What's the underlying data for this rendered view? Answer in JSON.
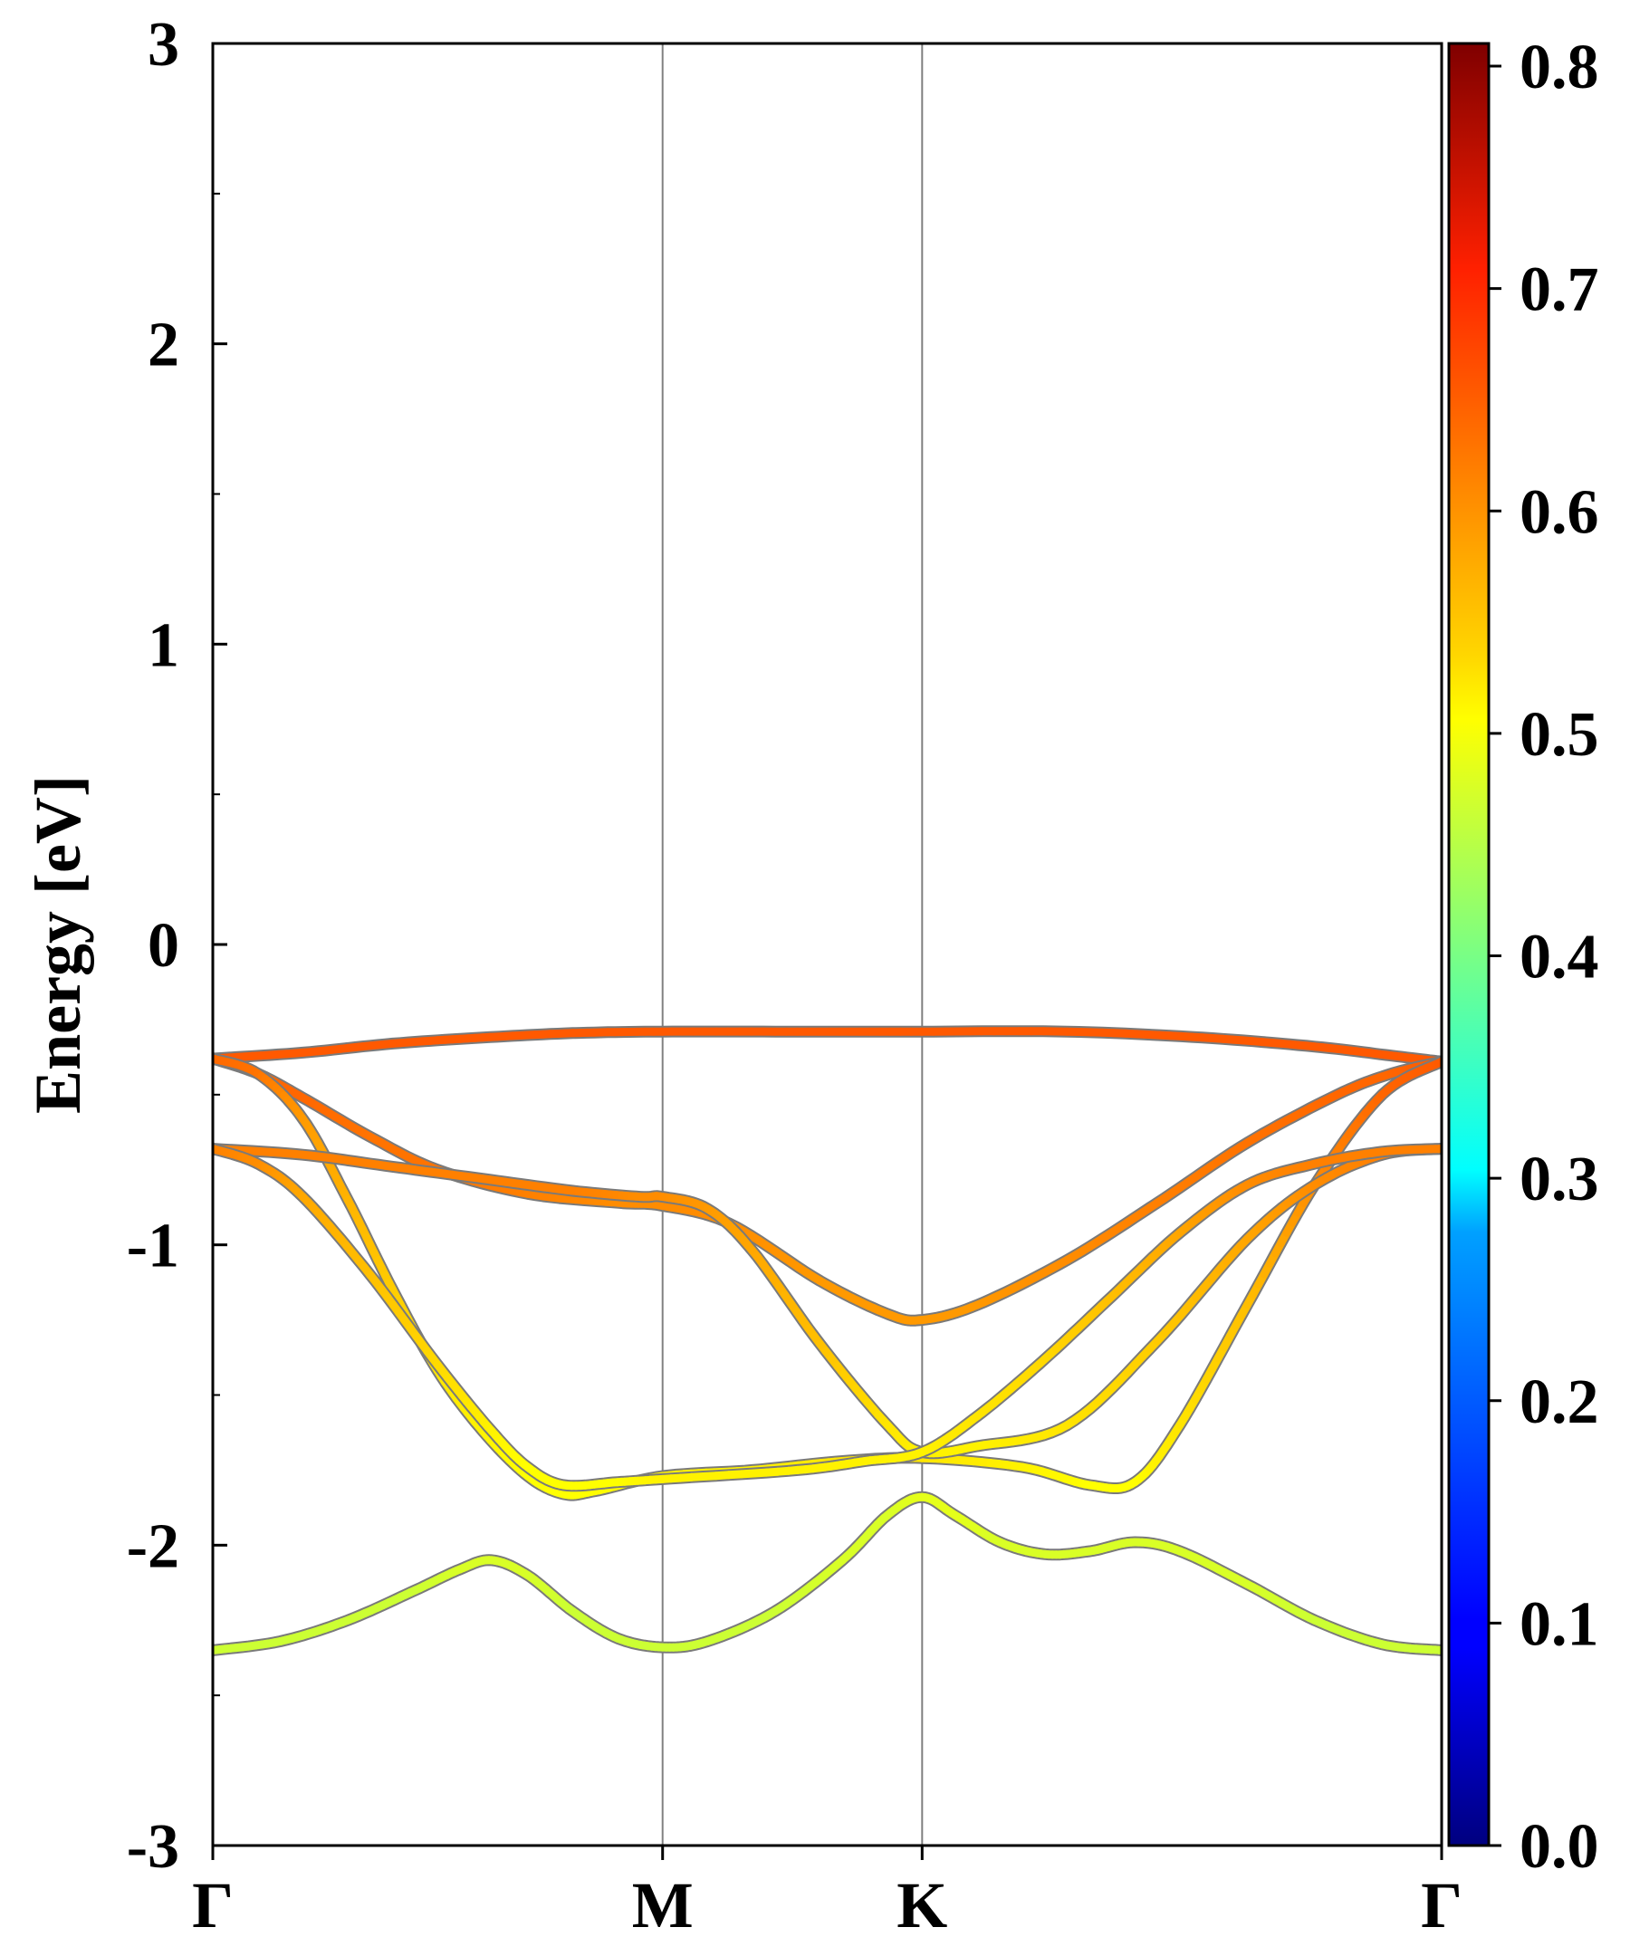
{
  "chart_data": {
    "type": "line",
    "title": "",
    "xlabel": "",
    "ylabel": "Energy [eV]",
    "ylim": [
      -3,
      3
    ],
    "yticks": [
      "3",
      "2",
      "1",
      "0",
      "-1",
      "-2",
      "-3"
    ],
    "ytick_values": [
      3,
      2,
      1,
      0,
      -1,
      -2,
      -3
    ],
    "xlim": [
      0,
      2.732
    ],
    "high_symmetry_points": [
      {
        "label": "Γ",
        "x": 0
      },
      {
        "label": "M",
        "x": 1.0
      },
      {
        "label": "K",
        "x": 1.577
      },
      {
        "label": "Γ",
        "x": 2.732
      }
    ],
    "colorbar": {
      "colormap": "jet",
      "range": [
        0.0,
        0.8
      ],
      "ticks": [
        "0.8",
        "0.7",
        "0.6",
        "0.5",
        "0.4",
        "0.3",
        "0.2",
        "0.1",
        "0.0"
      ],
      "tick_values": [
        0.8,
        0.7,
        0.6,
        0.5,
        0.4,
        0.3,
        0.2,
        0.1,
        0.0
      ]
    },
    "series": [
      {
        "points": [
          [
            0,
            -0.38
          ],
          [
            0.2,
            -0.36
          ],
          [
            0.4,
            -0.33
          ],
          [
            0.6,
            -0.31
          ],
          [
            0.8,
            -0.295
          ],
          [
            1.0,
            -0.29
          ],
          [
            1.3,
            -0.29
          ],
          [
            1.577,
            -0.29
          ],
          [
            1.9,
            -0.29
          ],
          [
            2.2,
            -0.31
          ],
          [
            2.45,
            -0.34
          ],
          [
            2.62,
            -0.37
          ],
          [
            2.732,
            -0.39
          ]
        ],
        "weight": [
          0.63,
          0.63,
          0.63,
          0.63,
          0.63,
          0.63,
          0.63,
          0.63,
          0.63,
          0.63,
          0.63,
          0.63,
          0.63
        ]
      },
      {
        "points": [
          [
            0,
            -0.38
          ],
          [
            0.1,
            -0.43
          ],
          [
            0.2,
            -0.51
          ],
          [
            0.35,
            -0.64
          ],
          [
            0.5,
            -0.75
          ],
          [
            0.7,
            -0.83
          ],
          [
            0.9,
            -0.86
          ],
          [
            1.0,
            -0.87
          ],
          [
            1.15,
            -0.93
          ],
          [
            1.35,
            -1.12
          ],
          [
            1.5,
            -1.23
          ],
          [
            1.577,
            -1.25
          ],
          [
            1.7,
            -1.2
          ],
          [
            1.9,
            -1.05
          ],
          [
            2.1,
            -0.86
          ],
          [
            2.3,
            -0.66
          ],
          [
            2.5,
            -0.5
          ],
          [
            2.62,
            -0.43
          ],
          [
            2.732,
            -0.39
          ]
        ],
        "weight": [
          0.62,
          0.62,
          0.62,
          0.61,
          0.61,
          0.6,
          0.59,
          0.59,
          0.59,
          0.58,
          0.58,
          0.58,
          0.58,
          0.59,
          0.6,
          0.61,
          0.62,
          0.62,
          0.63
        ]
      },
      {
        "points": [
          [
            0,
            -0.38
          ],
          [
            0.1,
            -0.43
          ],
          [
            0.2,
            -0.58
          ],
          [
            0.3,
            -0.85
          ],
          [
            0.4,
            -1.15
          ],
          [
            0.5,
            -1.42
          ],
          [
            0.6,
            -1.62
          ],
          [
            0.7,
            -1.77
          ],
          [
            0.78,
            -1.83
          ],
          [
            0.85,
            -1.82
          ],
          [
            1.0,
            -1.77
          ],
          [
            1.2,
            -1.75
          ],
          [
            1.4,
            -1.72
          ],
          [
            1.577,
            -1.71
          ],
          [
            1.8,
            -1.74
          ],
          [
            1.95,
            -1.8
          ],
          [
            2.05,
            -1.79
          ],
          [
            2.15,
            -1.6
          ],
          [
            2.3,
            -1.2
          ],
          [
            2.45,
            -0.8
          ],
          [
            2.6,
            -0.5
          ],
          [
            2.732,
            -0.39
          ]
        ],
        "weight": [
          0.62,
          0.61,
          0.58,
          0.56,
          0.54,
          0.52,
          0.51,
          0.5,
          0.5,
          0.5,
          0.51,
          0.51,
          0.52,
          0.52,
          0.51,
          0.5,
          0.5,
          0.52,
          0.55,
          0.59,
          0.62,
          0.63
        ]
      },
      {
        "points": [
          [
            0,
            -0.68
          ],
          [
            0.2,
            -0.7
          ],
          [
            0.4,
            -0.74
          ],
          [
            0.6,
            -0.78
          ],
          [
            0.8,
            -0.82
          ],
          [
            0.95,
            -0.84
          ],
          [
            1.0,
            -0.84
          ],
          [
            1.1,
            -0.88
          ],
          [
            1.2,
            -1.02
          ],
          [
            1.35,
            -1.33
          ],
          [
            1.5,
            -1.6
          ],
          [
            1.577,
            -1.69
          ],
          [
            1.7,
            -1.67
          ],
          [
            1.9,
            -1.6
          ],
          [
            2.1,
            -1.32
          ],
          [
            2.3,
            -0.98
          ],
          [
            2.45,
            -0.8
          ],
          [
            2.6,
            -0.7
          ],
          [
            2.732,
            -0.68
          ]
        ],
        "weight": [
          0.6,
          0.6,
          0.6,
          0.6,
          0.6,
          0.59,
          0.59,
          0.58,
          0.57,
          0.55,
          0.52,
          0.51,
          0.51,
          0.52,
          0.54,
          0.57,
          0.59,
          0.6,
          0.6
        ]
      },
      {
        "points": [
          [
            0,
            -0.68
          ],
          [
            0.1,
            -0.73
          ],
          [
            0.2,
            -0.84
          ],
          [
            0.35,
            -1.1
          ],
          [
            0.5,
            -1.4
          ],
          [
            0.62,
            -1.62
          ],
          [
            0.7,
            -1.74
          ],
          [
            0.78,
            -1.8
          ],
          [
            0.9,
            -1.79
          ],
          [
            1.0,
            -1.78
          ],
          [
            1.3,
            -1.75
          ],
          [
            1.45,
            -1.72
          ],
          [
            1.577,
            -1.69
          ],
          [
            1.7,
            -1.57
          ],
          [
            1.85,
            -1.38
          ],
          [
            2.0,
            -1.17
          ],
          [
            2.15,
            -0.96
          ],
          [
            2.3,
            -0.8
          ],
          [
            2.45,
            -0.73
          ],
          [
            2.6,
            -0.69
          ],
          [
            2.732,
            -0.68
          ]
        ],
        "weight": [
          0.6,
          0.59,
          0.57,
          0.55,
          0.53,
          0.51,
          0.5,
          0.5,
          0.5,
          0.51,
          0.51,
          0.51,
          0.51,
          0.52,
          0.53,
          0.55,
          0.57,
          0.59,
          0.6,
          0.6,
          0.6
        ]
      },
      {
        "points": [
          [
            0,
            -2.35
          ],
          [
            0.15,
            -2.32
          ],
          [
            0.3,
            -2.25
          ],
          [
            0.45,
            -2.15
          ],
          [
            0.55,
            -2.08
          ],
          [
            0.62,
            -2.05
          ],
          [
            0.7,
            -2.1
          ],
          [
            0.8,
            -2.22
          ],
          [
            0.9,
            -2.31
          ],
          [
            1.0,
            -2.34
          ],
          [
            1.1,
            -2.32
          ],
          [
            1.25,
            -2.22
          ],
          [
            1.4,
            -2.05
          ],
          [
            1.5,
            -1.9
          ],
          [
            1.577,
            -1.84
          ],
          [
            1.65,
            -1.9
          ],
          [
            1.75,
            -1.99
          ],
          [
            1.85,
            -2.03
          ],
          [
            1.95,
            -2.02
          ],
          [
            2.05,
            -1.99
          ],
          [
            2.15,
            -2.02
          ],
          [
            2.3,
            -2.13
          ],
          [
            2.45,
            -2.25
          ],
          [
            2.6,
            -2.33
          ],
          [
            2.732,
            -2.35
          ]
        ],
        "weight": [
          0.46,
          0.46,
          0.46,
          0.46,
          0.47,
          0.47,
          0.47,
          0.46,
          0.46,
          0.46,
          0.46,
          0.46,
          0.47,
          0.47,
          0.48,
          0.48,
          0.47,
          0.47,
          0.47,
          0.47,
          0.47,
          0.47,
          0.46,
          0.46,
          0.46
        ]
      }
    ]
  }
}
